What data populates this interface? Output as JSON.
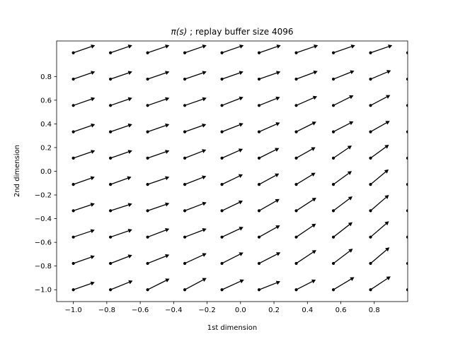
{
  "chart_data": {
    "type": "quiver",
    "title": "π(s) ; replay buffer size 4096",
    "title_math": "π(s)",
    "title_rest": " ; replay buffer size 4096",
    "xlabel": "1st dimension",
    "ylabel": "2nd dimension",
    "xlim": [
      -1.1,
      1.0
    ],
    "ylim": [
      -1.1,
      1.1
    ],
    "xticks": [
      -1.0,
      -0.8,
      -0.6,
      -0.4,
      -0.2,
      0.0,
      0.2,
      0.4,
      0.6,
      0.8
    ],
    "xtick_labels": [
      "−1.0",
      "−0.8",
      "−0.6",
      "−0.4",
      "−0.2",
      "0.0",
      "0.2",
      "0.4",
      "0.6",
      "0.8"
    ],
    "yticks": [
      -1.0,
      -0.8,
      -0.6,
      -0.4,
      -0.2,
      0.0,
      0.2,
      0.4,
      0.6,
      0.8
    ],
    "ytick_labels": [
      "−1.0",
      "−0.8",
      "−0.6",
      "−0.4",
      "−0.2",
      "0.0",
      "0.2",
      "0.4",
      "0.6",
      "0.8"
    ],
    "grid": false,
    "arrow_color": "#000000",
    "x": [
      -1.0,
      -0.7778,
      -0.5556,
      -0.3333,
      -0.1111,
      0.1111,
      0.3333,
      0.5556,
      0.7778,
      1.0
    ],
    "y": [
      -1.0,
      -0.7778,
      -0.5556,
      -0.3333,
      -0.1111,
      0.1111,
      0.3333,
      0.5556,
      0.7778,
      1.0
    ],
    "vectors": [
      [
        [
          0.128,
          0.045
        ],
        [
          0.133,
          0.054
        ],
        [
          0.131,
          0.066
        ],
        [
          0.13,
          0.07
        ],
        [
          0.132,
          0.06
        ],
        [
          0.127,
          0.05
        ],
        [
          0.117,
          0.06
        ],
        [
          0.125,
          0.075
        ],
        [
          0.12,
          0.08
        ],
        [
          0.11,
          0.09
        ]
      ],
      [
        [
          0.128,
          0.045
        ],
        [
          0.13,
          0.05
        ],
        [
          0.13,
          0.052
        ],
        [
          0.13,
          0.06
        ],
        [
          0.128,
          0.065
        ],
        [
          0.128,
          0.066
        ],
        [
          0.12,
          0.08
        ],
        [
          0.116,
          0.088
        ],
        [
          0.113,
          0.096
        ],
        [
          0.11,
          0.1
        ]
      ],
      [
        [
          0.128,
          0.043
        ],
        [
          0.13,
          0.045
        ],
        [
          0.13,
          0.05
        ],
        [
          0.13,
          0.05
        ],
        [
          0.128,
          0.06
        ],
        [
          0.125,
          0.07
        ],
        [
          0.118,
          0.08
        ],
        [
          0.114,
          0.089
        ],
        [
          0.11,
          0.095
        ],
        [
          0.11,
          0.1
        ]
      ],
      [
        [
          0.128,
          0.043
        ],
        [
          0.13,
          0.042
        ],
        [
          0.13,
          0.045
        ],
        [
          0.13,
          0.05
        ],
        [
          0.125,
          0.06
        ],
        [
          0.122,
          0.07
        ],
        [
          0.12,
          0.078
        ],
        [
          0.114,
          0.086
        ],
        [
          0.11,
          0.095
        ],
        [
          0.108,
          0.097
        ]
      ],
      [
        [
          0.128,
          0.045
        ],
        [
          0.125,
          0.045
        ],
        [
          0.13,
          0.045
        ],
        [
          0.128,
          0.05
        ],
        [
          0.125,
          0.06
        ],
        [
          0.12,
          0.065
        ],
        [
          0.115,
          0.07
        ],
        [
          0.11,
          0.08
        ],
        [
          0.108,
          0.09
        ],
        [
          0.108,
          0.085
        ]
      ],
      [
        [
          0.13,
          0.045
        ],
        [
          0.13,
          0.045
        ],
        [
          0.13,
          0.045
        ],
        [
          0.128,
          0.05
        ],
        [
          0.125,
          0.055
        ],
        [
          0.12,
          0.06
        ],
        [
          0.115,
          0.065
        ],
        [
          0.11,
          0.075
        ],
        [
          0.11,
          0.08
        ],
        [
          0.108,
          0.085
        ]
      ],
      [
        [
          0.13,
          0.045
        ],
        [
          0.13,
          0.045
        ],
        [
          0.13,
          0.045
        ],
        [
          0.128,
          0.045
        ],
        [
          0.128,
          0.05
        ],
        [
          0.125,
          0.055
        ],
        [
          0.12,
          0.06
        ],
        [
          0.12,
          0.062
        ],
        [
          0.115,
          0.065
        ],
        [
          0.11,
          0.07
        ]
      ],
      [
        [
          0.13,
          0.045
        ],
        [
          0.13,
          0.045
        ],
        [
          0.13,
          0.045
        ],
        [
          0.13,
          0.045
        ],
        [
          0.128,
          0.05
        ],
        [
          0.125,
          0.05
        ],
        [
          0.125,
          0.055
        ],
        [
          0.12,
          0.06
        ],
        [
          0.118,
          0.062
        ],
        [
          0.11,
          0.06
        ]
      ],
      [
        [
          0.13,
          0.045
        ],
        [
          0.13,
          0.045
        ],
        [
          0.13,
          0.045
        ],
        [
          0.13,
          0.045
        ],
        [
          0.128,
          0.045
        ],
        [
          0.128,
          0.045
        ],
        [
          0.128,
          0.048
        ],
        [
          0.125,
          0.05
        ],
        [
          0.122,
          0.052
        ],
        [
          0.11,
          0.055
        ]
      ],
      [
        [
          0.13,
          0.045
        ],
        [
          0.13,
          0.045
        ],
        [
          0.13,
          0.045
        ],
        [
          0.13,
          0.045
        ],
        [
          0.13,
          0.045
        ],
        [
          0.13,
          0.045
        ],
        [
          0.13,
          0.045
        ],
        [
          0.13,
          0.045
        ],
        [
          0.13,
          0.045
        ],
        [
          0.11,
          0.045
        ]
      ]
    ]
  }
}
